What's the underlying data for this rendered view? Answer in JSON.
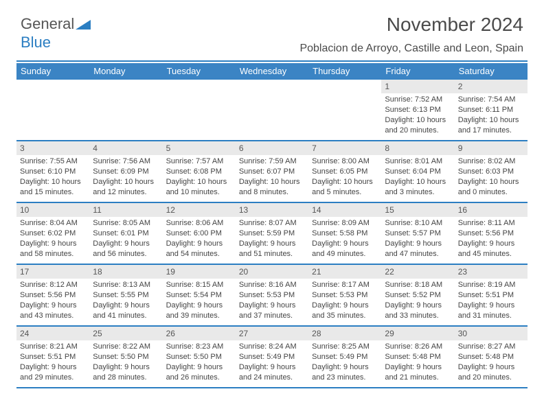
{
  "logo": {
    "text1": "General",
    "text2": "Blue"
  },
  "title": "November 2024",
  "subtitle": "Poblacion de Arroyo, Castille and Leon, Spain",
  "colors": {
    "header_bg": "#3b84c4",
    "rule": "#2b7ec2",
    "daynum_bg": "#e9e9e9",
    "text": "#444444"
  },
  "dayheads": [
    "Sunday",
    "Monday",
    "Tuesday",
    "Wednesday",
    "Thursday",
    "Friday",
    "Saturday"
  ],
  "cells": [
    {
      "n": "",
      "sr": "",
      "ss": "",
      "dl": ""
    },
    {
      "n": "",
      "sr": "",
      "ss": "",
      "dl": ""
    },
    {
      "n": "",
      "sr": "",
      "ss": "",
      "dl": ""
    },
    {
      "n": "",
      "sr": "",
      "ss": "",
      "dl": ""
    },
    {
      "n": "",
      "sr": "",
      "ss": "",
      "dl": ""
    },
    {
      "n": "1",
      "sr": "Sunrise: 7:52 AM",
      "ss": "Sunset: 6:13 PM",
      "dl": "Daylight: 10 hours and 20 minutes."
    },
    {
      "n": "2",
      "sr": "Sunrise: 7:54 AM",
      "ss": "Sunset: 6:11 PM",
      "dl": "Daylight: 10 hours and 17 minutes."
    },
    {
      "n": "3",
      "sr": "Sunrise: 7:55 AM",
      "ss": "Sunset: 6:10 PM",
      "dl": "Daylight: 10 hours and 15 minutes."
    },
    {
      "n": "4",
      "sr": "Sunrise: 7:56 AM",
      "ss": "Sunset: 6:09 PM",
      "dl": "Daylight: 10 hours and 12 minutes."
    },
    {
      "n": "5",
      "sr": "Sunrise: 7:57 AM",
      "ss": "Sunset: 6:08 PM",
      "dl": "Daylight: 10 hours and 10 minutes."
    },
    {
      "n": "6",
      "sr": "Sunrise: 7:59 AM",
      "ss": "Sunset: 6:07 PM",
      "dl": "Daylight: 10 hours and 8 minutes."
    },
    {
      "n": "7",
      "sr": "Sunrise: 8:00 AM",
      "ss": "Sunset: 6:05 PM",
      "dl": "Daylight: 10 hours and 5 minutes."
    },
    {
      "n": "8",
      "sr": "Sunrise: 8:01 AM",
      "ss": "Sunset: 6:04 PM",
      "dl": "Daylight: 10 hours and 3 minutes."
    },
    {
      "n": "9",
      "sr": "Sunrise: 8:02 AM",
      "ss": "Sunset: 6:03 PM",
      "dl": "Daylight: 10 hours and 0 minutes."
    },
    {
      "n": "10",
      "sr": "Sunrise: 8:04 AM",
      "ss": "Sunset: 6:02 PM",
      "dl": "Daylight: 9 hours and 58 minutes."
    },
    {
      "n": "11",
      "sr": "Sunrise: 8:05 AM",
      "ss": "Sunset: 6:01 PM",
      "dl": "Daylight: 9 hours and 56 minutes."
    },
    {
      "n": "12",
      "sr": "Sunrise: 8:06 AM",
      "ss": "Sunset: 6:00 PM",
      "dl": "Daylight: 9 hours and 54 minutes."
    },
    {
      "n": "13",
      "sr": "Sunrise: 8:07 AM",
      "ss": "Sunset: 5:59 PM",
      "dl": "Daylight: 9 hours and 51 minutes."
    },
    {
      "n": "14",
      "sr": "Sunrise: 8:09 AM",
      "ss": "Sunset: 5:58 PM",
      "dl": "Daylight: 9 hours and 49 minutes."
    },
    {
      "n": "15",
      "sr": "Sunrise: 8:10 AM",
      "ss": "Sunset: 5:57 PM",
      "dl": "Daylight: 9 hours and 47 minutes."
    },
    {
      "n": "16",
      "sr": "Sunrise: 8:11 AM",
      "ss": "Sunset: 5:56 PM",
      "dl": "Daylight: 9 hours and 45 minutes."
    },
    {
      "n": "17",
      "sr": "Sunrise: 8:12 AM",
      "ss": "Sunset: 5:56 PM",
      "dl": "Daylight: 9 hours and 43 minutes."
    },
    {
      "n": "18",
      "sr": "Sunrise: 8:13 AM",
      "ss": "Sunset: 5:55 PM",
      "dl": "Daylight: 9 hours and 41 minutes."
    },
    {
      "n": "19",
      "sr": "Sunrise: 8:15 AM",
      "ss": "Sunset: 5:54 PM",
      "dl": "Daylight: 9 hours and 39 minutes."
    },
    {
      "n": "20",
      "sr": "Sunrise: 8:16 AM",
      "ss": "Sunset: 5:53 PM",
      "dl": "Daylight: 9 hours and 37 minutes."
    },
    {
      "n": "21",
      "sr": "Sunrise: 8:17 AM",
      "ss": "Sunset: 5:53 PM",
      "dl": "Daylight: 9 hours and 35 minutes."
    },
    {
      "n": "22",
      "sr": "Sunrise: 8:18 AM",
      "ss": "Sunset: 5:52 PM",
      "dl": "Daylight: 9 hours and 33 minutes."
    },
    {
      "n": "23",
      "sr": "Sunrise: 8:19 AM",
      "ss": "Sunset: 5:51 PM",
      "dl": "Daylight: 9 hours and 31 minutes."
    },
    {
      "n": "24",
      "sr": "Sunrise: 8:21 AM",
      "ss": "Sunset: 5:51 PM",
      "dl": "Daylight: 9 hours and 29 minutes."
    },
    {
      "n": "25",
      "sr": "Sunrise: 8:22 AM",
      "ss": "Sunset: 5:50 PM",
      "dl": "Daylight: 9 hours and 28 minutes."
    },
    {
      "n": "26",
      "sr": "Sunrise: 8:23 AM",
      "ss": "Sunset: 5:50 PM",
      "dl": "Daylight: 9 hours and 26 minutes."
    },
    {
      "n": "27",
      "sr": "Sunrise: 8:24 AM",
      "ss": "Sunset: 5:49 PM",
      "dl": "Daylight: 9 hours and 24 minutes."
    },
    {
      "n": "28",
      "sr": "Sunrise: 8:25 AM",
      "ss": "Sunset: 5:49 PM",
      "dl": "Daylight: 9 hours and 23 minutes."
    },
    {
      "n": "29",
      "sr": "Sunrise: 8:26 AM",
      "ss": "Sunset: 5:48 PM",
      "dl": "Daylight: 9 hours and 21 minutes."
    },
    {
      "n": "30",
      "sr": "Sunrise: 8:27 AM",
      "ss": "Sunset: 5:48 PM",
      "dl": "Daylight: 9 hours and 20 minutes."
    }
  ]
}
